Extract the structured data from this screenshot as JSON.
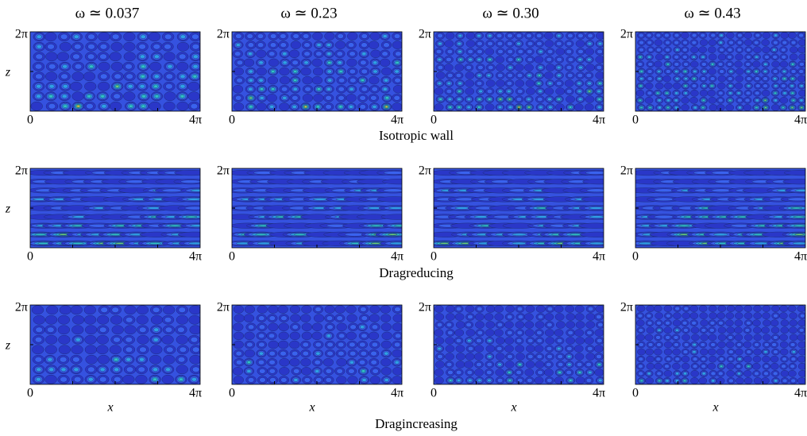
{
  "columns": [
    {
      "label": "ω ≃ 0.037"
    },
    {
      "label": "ω ≃ 0.23"
    },
    {
      "label": "ω ≃ 0.30"
    },
    {
      "label": "ω ≃ 0.43"
    }
  ],
  "rows": [
    {
      "caption": "Isotropic wall"
    },
    {
      "caption": "Dragreducing"
    },
    {
      "caption": "Dragincreasing"
    }
  ],
  "axes": {
    "z_top": "2π",
    "z_label": "z",
    "x_start": "0",
    "x_end": "4π",
    "x_label": "x"
  }
}
